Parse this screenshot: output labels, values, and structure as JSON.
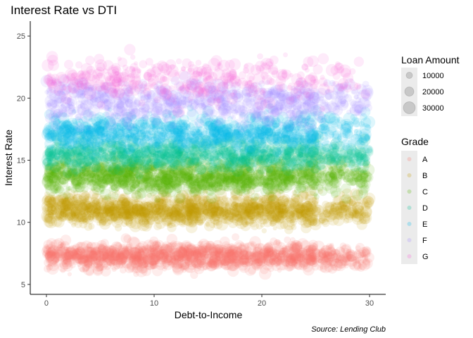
{
  "chart_data": {
    "type": "scatter",
    "title": "Interest Rate vs DTI",
    "xlabel": "Debt-to-Income",
    "ylabel": "Interest Rate",
    "xlim": [
      -1.5,
      31.5
    ],
    "ylim": [
      4.2,
      26.2
    ],
    "xticks": [
      0,
      10,
      20,
      30
    ],
    "yticks": [
      5,
      10,
      15,
      20,
      25
    ],
    "grid": false,
    "caption": "Source: Lending Club",
    "size_legend": {
      "title": "Loan Amount",
      "entries": [
        {
          "label": "10000",
          "value": 10000
        },
        {
          "label": "20000",
          "value": 20000
        },
        {
          "label": "30000",
          "value": 30000
        }
      ]
    },
    "color_legend": {
      "title": "Grade",
      "entries": [
        {
          "label": "A",
          "color": "#F8766D"
        },
        {
          "label": "B",
          "color": "#C49A00"
        },
        {
          "label": "C",
          "color": "#53B400"
        },
        {
          "label": "D",
          "color": "#00C094"
        },
        {
          "label": "E",
          "color": "#00B6EB"
        },
        {
          "label": "F",
          "color": "#A58AFF"
        },
        {
          "label": "G",
          "color": "#FB61D7"
        }
      ]
    },
    "series": [
      {
        "name": "A",
        "color": "#F8766D",
        "y_range": [
          5.5,
          9.0
        ],
        "x_range": [
          0,
          30
        ],
        "density": "very high"
      },
      {
        "name": "B",
        "color": "#C49A00",
        "y_range": [
          9.0,
          13.0
        ],
        "x_range": [
          0,
          30
        ],
        "density": "very high"
      },
      {
        "name": "C",
        "color": "#53B400",
        "y_range": [
          11.5,
          16.0
        ],
        "x_range": [
          0,
          30
        ],
        "density": "very high"
      },
      {
        "name": "D",
        "color": "#00C094",
        "y_range": [
          13.5,
          17.5
        ],
        "x_range": [
          0,
          30
        ],
        "density": "high"
      },
      {
        "name": "E",
        "color": "#00B6EB",
        "y_range": [
          15.0,
          19.5
        ],
        "x_range": [
          0,
          30
        ],
        "density": "high"
      },
      {
        "name": "F",
        "color": "#A58AFF",
        "y_range": [
          17.0,
          22.5
        ],
        "x_range": [
          0,
          30
        ],
        "density": "medium"
      },
      {
        "name": "G",
        "color": "#FB61D7",
        "y_range": [
          18.5,
          24.5
        ],
        "x_range": [
          0,
          30
        ],
        "density": "low"
      }
    ]
  }
}
